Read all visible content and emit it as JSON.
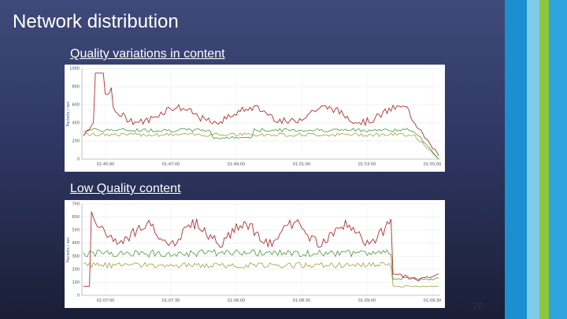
{
  "slide": {
    "title": "Network distribution",
    "page_number": "26"
  },
  "captions": {
    "first": "Quality variations in content",
    "second": "Low Quality content"
  },
  "colors": {
    "background_top": "#3f4a7a",
    "background_bottom": "#1a1f36",
    "series_red": "#b03030",
    "series_green": "#4a9a3a",
    "series_olive": "#a0a040",
    "stripe_blue": "#1c8fd1",
    "stripe_light_blue": "#7fcbe8",
    "stripe_green": "#8cc540"
  },
  "charts": [
    {
      "y_ticks": [
        "1000",
        "800",
        "600",
        "400",
        "200",
        "0"
      ],
      "x_ticks": [
        "01:45:00",
        "01:47:00",
        "01:49:00",
        "01:51:00",
        "01:53:00",
        "01:55:00"
      ],
      "ylabel": "Packets / sec"
    },
    {
      "y_ticks": [
        "700",
        "600",
        "500",
        "400",
        "300",
        "200",
        "100",
        "0"
      ],
      "x_ticks": [
        "01:07:00",
        "01:07:30",
        "01:08:00",
        "01:08:30",
        "01:09:00",
        "01:09:30"
      ],
      "ylabel": "Packets / sec"
    }
  ]
}
